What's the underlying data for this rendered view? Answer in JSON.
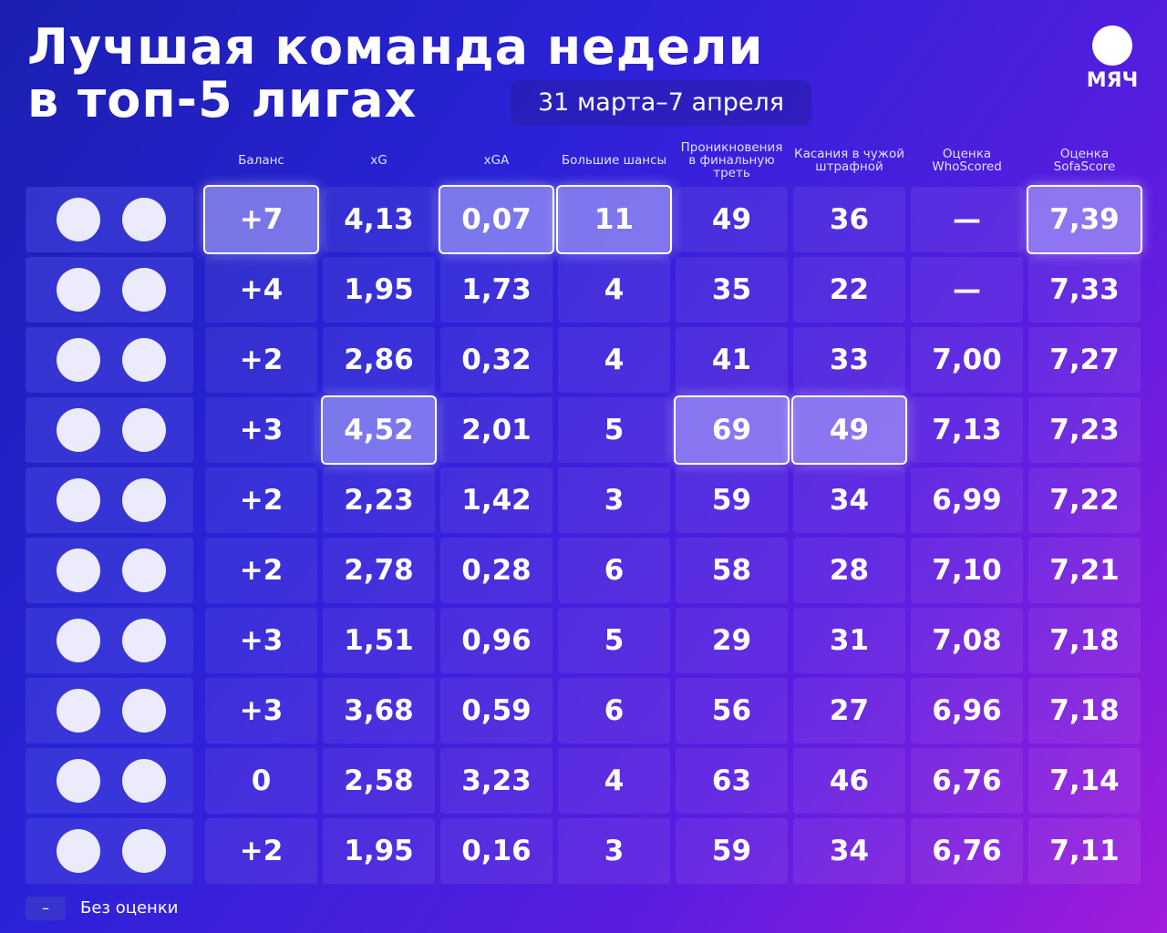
{
  "header": {
    "title_lines": [
      "Лучшая команда недели",
      "в топ-5 лигах"
    ],
    "date": "31 марта–7 апреля",
    "brand": "МЯЧ"
  },
  "table": {
    "columns": [
      "Баланс",
      "xG",
      "xGA",
      "Большие шансы",
      "Проникновения в финальную треть",
      "Касания в чужой штрафной",
      "Оценка WhoScored",
      "Оценка SofaScore"
    ],
    "rows": [
      {
        "cells": [
          "+7",
          "4,13",
          "0,07",
          "11",
          "49",
          "36",
          "—",
          "7,39"
        ],
        "highlight": [
          0,
          2,
          3,
          7
        ]
      },
      {
        "cells": [
          "+4",
          "1,95",
          "1,73",
          "4",
          "35",
          "22",
          "—",
          "7,33"
        ],
        "highlight": []
      },
      {
        "cells": [
          "+2",
          "2,86",
          "0,32",
          "4",
          "41",
          "33",
          "7,00",
          "7,27"
        ],
        "highlight": []
      },
      {
        "cells": [
          "+3",
          "4,52",
          "2,01",
          "5",
          "69",
          "49",
          "7,13",
          "7,23"
        ],
        "highlight": [
          1,
          4,
          5
        ]
      },
      {
        "cells": [
          "+2",
          "2,23",
          "1,42",
          "3",
          "59",
          "34",
          "6,99",
          "7,22"
        ],
        "highlight": []
      },
      {
        "cells": [
          "+2",
          "2,78",
          "0,28",
          "6",
          "58",
          "28",
          "7,10",
          "7,21"
        ],
        "highlight": []
      },
      {
        "cells": [
          "+3",
          "1,51",
          "0,96",
          "5",
          "29",
          "31",
          "7,08",
          "7,18"
        ],
        "highlight": []
      },
      {
        "cells": [
          "+3",
          "3,68",
          "0,59",
          "6",
          "56",
          "27",
          "6,96",
          "7,18"
        ],
        "highlight": []
      },
      {
        "cells": [
          "0",
          "2,58",
          "3,23",
          "4",
          "63",
          "46",
          "6,76",
          "7,14"
        ],
        "highlight": []
      },
      {
        "cells": [
          "+2",
          "1,95",
          "0,16",
          "3",
          "59",
          "34",
          "6,76",
          "7,11"
        ],
        "highlight": []
      }
    ]
  },
  "legend": {
    "symbol": "–",
    "label": "Без оценки"
  }
}
